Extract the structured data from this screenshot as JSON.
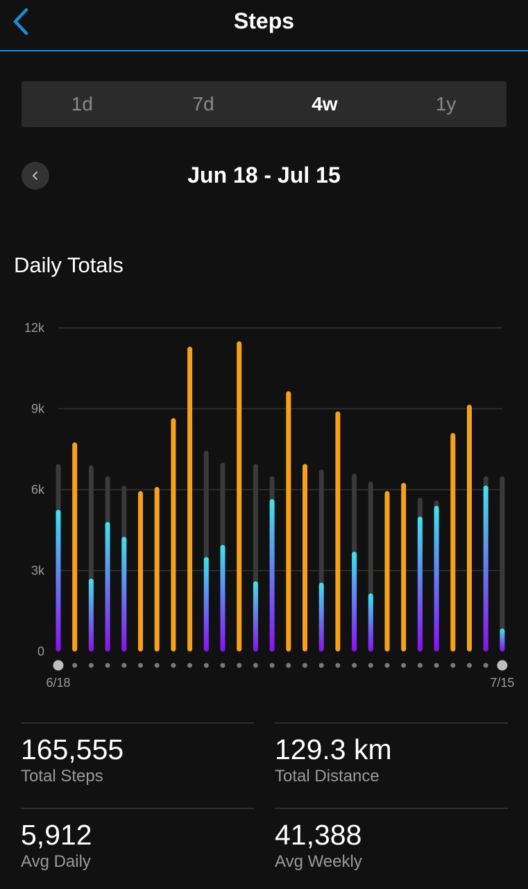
{
  "header": {
    "title": "Steps"
  },
  "tabs": [
    {
      "label": "1d",
      "active": false
    },
    {
      "label": "7d",
      "active": false
    },
    {
      "label": "4w",
      "active": true
    },
    {
      "label": "1y",
      "active": false
    }
  ],
  "range": {
    "label": "Jun 18 - Jul 15"
  },
  "section": {
    "title": "Daily Totals"
  },
  "colors": {
    "goal_met": "#f7a11a",
    "bar_top": "#3fe3ee",
    "bar_bottom": "#8b10f0",
    "goal_track": "#3a3a3a",
    "gridline": "#333333"
  },
  "chart_data": {
    "type": "bar",
    "ylim": [
      0,
      12000
    ],
    "yticks": [
      0,
      3000,
      6000,
      9000,
      12000
    ],
    "ytick_labels": [
      "0",
      "3k",
      "6k",
      "9k",
      "12k"
    ],
    "x_start_label": "6/18",
    "x_end_label": "7/15",
    "series": [
      {
        "values": [
          5250,
          7750,
          2700,
          4800,
          4250,
          5950,
          6100,
          8650,
          11300,
          3500,
          3950,
          11500,
          2600,
          5650,
          9650,
          6950,
          2550,
          8900,
          3700,
          2150,
          5950,
          6250,
          5000,
          5400,
          8100,
          9150,
          6150,
          850
        ]
      },
      {
        "values": [
          6950,
          7750,
          6900,
          6500,
          6150,
          5950,
          6100,
          8650,
          11300,
          7450,
          7000,
          11500,
          6950,
          6500,
          9650,
          6950,
          6750,
          8900,
          6600,
          6300,
          5950,
          6250,
          5700,
          5600,
          8100,
          9150,
          6500,
          6500
        ]
      }
    ],
    "goal_met": [
      false,
      true,
      false,
      false,
      false,
      true,
      true,
      true,
      true,
      false,
      false,
      true,
      false,
      false,
      true,
      true,
      false,
      true,
      false,
      false,
      true,
      true,
      false,
      false,
      true,
      true,
      false,
      false
    ]
  },
  "stats": [
    {
      "value": "165,555",
      "label": "Total Steps"
    },
    {
      "value": "129.3 km",
      "label": "Total Distance"
    },
    {
      "value": "5,912",
      "label": "Avg Daily"
    },
    {
      "value": "41,388",
      "label": "Avg Weekly"
    }
  ]
}
